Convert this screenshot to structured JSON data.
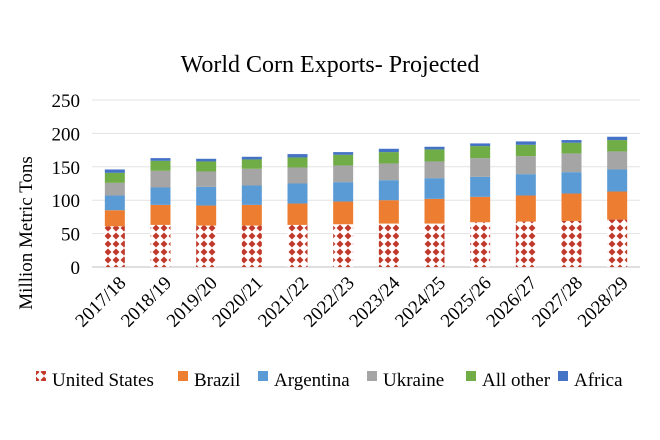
{
  "chart_data": {
    "type": "bar",
    "stacked": true,
    "title": "World Corn Exports- Projected",
    "xlabel": "",
    "ylabel": "Million Metric Tons",
    "ylim": [
      0,
      250
    ],
    "yticks": [
      0,
      50,
      100,
      150,
      200,
      250
    ],
    "grid": true,
    "legend_position": "bottom",
    "categories": [
      "2017/18",
      "2018/19",
      "2019/20",
      "2020/21",
      "2021/22",
      "2022/23",
      "2023/24",
      "2024/25",
      "2025/26",
      "2026/27",
      "2027/28",
      "2028/29"
    ],
    "series": [
      {
        "name": "United States",
        "color": "#c0392b",
        "pattern": "diamond-check",
        "values": [
          61,
          63,
          62,
          62,
          63,
          64,
          65,
          65,
          67,
          68,
          69,
          71
        ]
      },
      {
        "name": "Brazil",
        "color": "#ed7d31",
        "values": [
          24,
          30,
          30,
          31,
          32,
          34,
          35,
          37,
          38,
          39,
          41,
          42
        ]
      },
      {
        "name": "Argentina",
        "color": "#5b9bd5",
        "values": [
          22,
          26,
          28,
          29,
          30,
          29,
          30,
          31,
          30,
          32,
          32,
          33
        ]
      },
      {
        "name": "Ukraine",
        "color": "#a5a5a5",
        "values": [
          19,
          25,
          23,
          25,
          24,
          25,
          25,
          25,
          28,
          27,
          28,
          27
        ]
      },
      {
        "name": "All other",
        "color": "#70ad47",
        "values": [
          15,
          15,
          15,
          14,
          15,
          16,
          17,
          18,
          18,
          17,
          16,
          17
        ]
      },
      {
        "name": "Africa",
        "color": "#4472c4",
        "values": [
          5,
          4,
          4,
          4,
          5,
          4,
          5,
          4,
          4,
          5,
          4,
          5
        ]
      }
    ]
  }
}
